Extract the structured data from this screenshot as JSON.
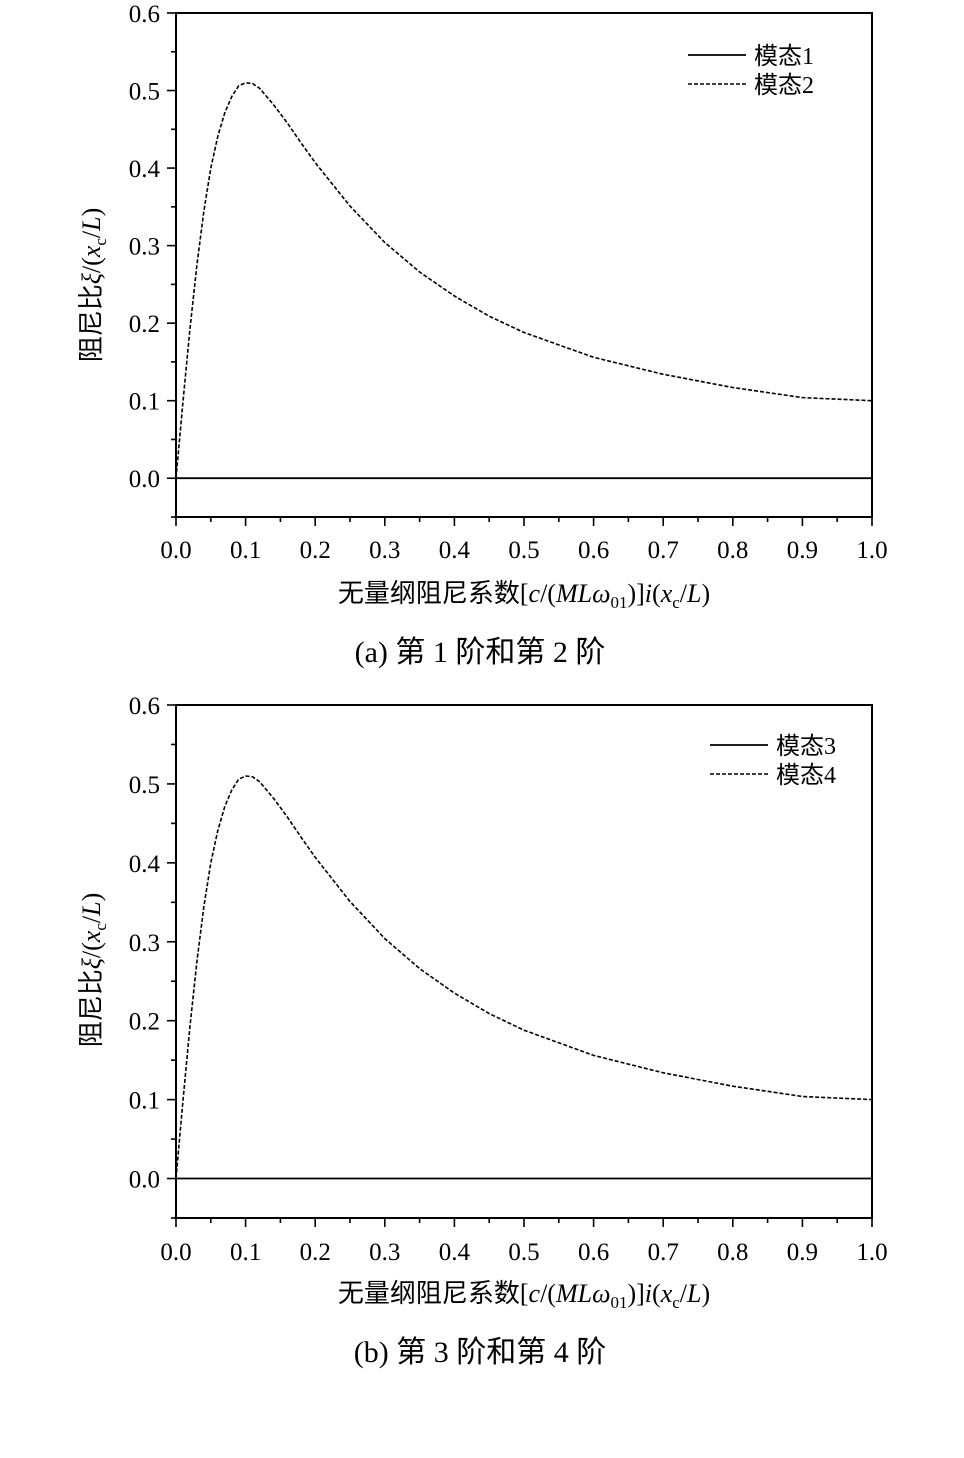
{
  "chart_data": [
    {
      "type": "line",
      "caption": "(a)  第 1 阶和第 2 阶",
      "xlabel": "无量纲阻尼系数[c/(MLω01)]i(xc/L)",
      "ylabel": "阻尼比ξ/(xc/L)",
      "xlim": [
        0,
        1.0
      ],
      "ylim": [
        -0.05,
        0.6
      ],
      "x_ticks": [
        "0.0",
        "0.1",
        "0.2",
        "0.3",
        "0.4",
        "0.5",
        "0.6",
        "0.7",
        "0.8",
        "0.9",
        "1.0"
      ],
      "y_ticks": [
        "0.0",
        "0.1",
        "0.2",
        "0.3",
        "0.4",
        "0.5",
        "0.6"
      ],
      "legend_position": "top-right",
      "series": [
        {
          "name": "模态1",
          "style": "solid",
          "x": [
            0,
            1.0
          ],
          "y": [
            0,
            0
          ]
        },
        {
          "name": "模态2",
          "style": "dashed",
          "x": [
            0,
            0.01,
            0.02,
            0.03,
            0.04,
            0.05,
            0.06,
            0.07,
            0.08,
            0.09,
            0.1,
            0.11,
            0.12,
            0.14,
            0.16,
            0.18,
            0.2,
            0.25,
            0.3,
            0.35,
            0.4,
            0.45,
            0.5,
            0.6,
            0.7,
            0.8,
            0.9,
            1.0
          ],
          "y": [
            0,
            0.099,
            0.192,
            0.275,
            0.344,
            0.4,
            0.441,
            0.471,
            0.492,
            0.506,
            0.51,
            0.509,
            0.503,
            0.482,
            0.458,
            0.432,
            0.407,
            0.351,
            0.304,
            0.266,
            0.235,
            0.209,
            0.188,
            0.156,
            0.134,
            0.117,
            0.104,
            0.1
          ]
        }
      ]
    },
    {
      "type": "line",
      "caption": "(b)  第 3 阶和第 4 阶",
      "xlabel": "无量纲阻尼系数[c/(MLω01)]i(xc/L)",
      "ylabel": "阻尼比ξ/(xc/L)",
      "xlim": [
        0,
        1.0
      ],
      "ylim": [
        -0.05,
        0.6
      ],
      "x_ticks": [
        "0.0",
        "0.1",
        "0.2",
        "0.3",
        "0.4",
        "0.5",
        "0.6",
        "0.7",
        "0.8",
        "0.9",
        "1.0"
      ],
      "y_ticks": [
        "0.0",
        "0.1",
        "0.2",
        "0.3",
        "0.4",
        "0.5",
        "0.6"
      ],
      "legend_position": "top-right",
      "series": [
        {
          "name": "模态3",
          "style": "solid",
          "x": [
            0,
            1.0
          ],
          "y": [
            0,
            0
          ]
        },
        {
          "name": "模态4",
          "style": "dashed",
          "x": [
            0,
            0.01,
            0.02,
            0.03,
            0.04,
            0.05,
            0.06,
            0.07,
            0.08,
            0.09,
            0.1,
            0.11,
            0.12,
            0.14,
            0.16,
            0.18,
            0.2,
            0.25,
            0.3,
            0.35,
            0.4,
            0.45,
            0.5,
            0.6,
            0.7,
            0.8,
            0.9,
            1.0
          ],
          "y": [
            0,
            0.099,
            0.192,
            0.275,
            0.344,
            0.4,
            0.441,
            0.471,
            0.492,
            0.506,
            0.51,
            0.509,
            0.503,
            0.482,
            0.458,
            0.432,
            0.407,
            0.351,
            0.304,
            0.266,
            0.235,
            0.209,
            0.188,
            0.156,
            0.134,
            0.117,
            0.104,
            0.1
          ]
        }
      ]
    }
  ]
}
